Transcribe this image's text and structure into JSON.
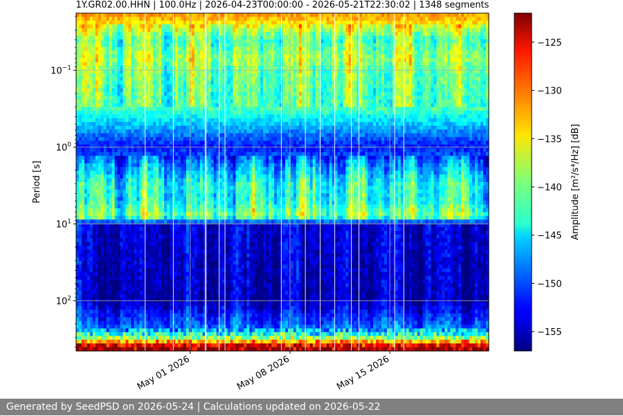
{
  "chart_data": {
    "type": "heatmap",
    "title": "1Y.GR02.00.HHN | 100.0Hz | 2026-04-23T00:00:00 - 2026-05-21T22:30:02 | 1348 segments",
    "ylabel": "Period [s]",
    "y_scale": "log",
    "y_inverted": true,
    "ylim": [
      0.018,
      450
    ],
    "y_ticks": [
      {
        "value": 0.1,
        "base": "10",
        "exp": "−1"
      },
      {
        "value": 1,
        "base": "10",
        "exp": "0"
      },
      {
        "value": 10,
        "base": "10",
        "exp": "1"
      },
      {
        "value": 100,
        "base": "10",
        "exp": "2"
      }
    ],
    "xlim": [
      "2026-04-23",
      "2026-05-21T22:30:02"
    ],
    "x_ticks": [
      {
        "date": "2026-05-01",
        "label": "May 01 2026"
      },
      {
        "date": "2026-05-08",
        "label": "May 08 2026"
      },
      {
        "date": "2026-05-15",
        "label": "May 15 2026"
      }
    ],
    "grid": true,
    "colorbar": {
      "label": "Amplitude [m²/s⁴/Hz] [dB]",
      "colormap": "jet",
      "range": [
        -157,
        -122
      ],
      "ticks": [
        -125,
        -130,
        -135,
        -140,
        -145,
        -150,
        -155
      ]
    },
    "amplitude_profile_by_period": [
      {
        "period": 0.02,
        "db": -132
      },
      {
        "period": 0.04,
        "db": -141
      },
      {
        "period": 0.07,
        "db": -138
      },
      {
        "period": 0.1,
        "db": -140
      },
      {
        "period": 0.3,
        "db": -141
      },
      {
        "period": 1,
        "db": -152
      },
      {
        "period": 3,
        "db": -143
      },
      {
        "period": 5,
        "db": -143
      },
      {
        "period": 8,
        "db": -139
      },
      {
        "period": 10,
        "db": -154
      },
      {
        "period": 100,
        "db": -155
      },
      {
        "period": 250,
        "db": -148
      },
      {
        "period": 300,
        "db": -141
      },
      {
        "period": 400,
        "db": -125
      }
    ]
  },
  "footer": {
    "text": "Generated by SeedPSD on 2026-05-24 | Calculations updated on 2026-05-22"
  }
}
